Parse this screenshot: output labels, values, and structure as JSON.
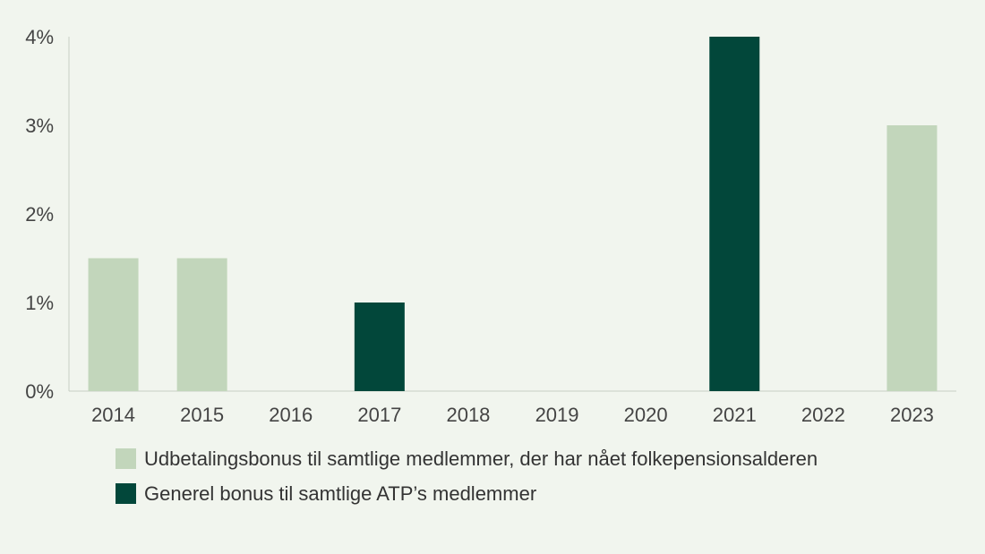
{
  "chart_data": {
    "type": "bar",
    "categories": [
      "2014",
      "2015",
      "2016",
      "2017",
      "2018",
      "2019",
      "2020",
      "2021",
      "2022",
      "2023"
    ],
    "series": [
      {
        "name": "Udbetalingsbonus til samtlige medlemmer, der har nået folkepensionsalderen",
        "color": "#c2d6bb",
        "values": [
          1.5,
          1.5,
          0,
          0,
          0,
          0,
          0,
          0,
          0,
          3
        ]
      },
      {
        "name": "Generel bonus til samtlige ATP’s medlemmer",
        "color": "#02473a",
        "values": [
          0,
          0,
          0,
          1,
          0,
          0,
          0,
          4,
          0,
          0
        ]
      }
    ],
    "y_ticks": [
      "0%",
      "1%",
      "2%",
      "3%",
      "4%"
    ],
    "ylim": [
      0,
      4
    ],
    "title": "",
    "xlabel": "",
    "ylabel": "",
    "grid": false,
    "legend_position": "bottom"
  }
}
